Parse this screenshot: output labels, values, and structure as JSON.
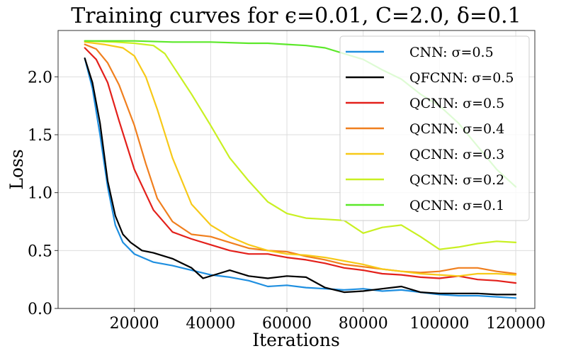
{
  "chart_data": {
    "type": "line",
    "title": "Training curves for ϵ=0.01, C=2.0, δ=0.1",
    "xlabel": "Iterations",
    "ylabel": "Loss",
    "xlim": [
      0,
      125000
    ],
    "ylim": [
      0,
      2.4
    ],
    "xticks": [
      20000,
      40000,
      60000,
      80000,
      100000,
      120000
    ],
    "yticks": [
      0.0,
      0.5,
      1.0,
      1.5,
      2.0
    ],
    "ytick_labels": [
      "0.0",
      "0.5",
      "1.0",
      "1.5",
      "2.0"
    ],
    "grid": true,
    "legend_position": "top-right",
    "series": [
      {
        "name": "CNN: σ=0.5",
        "color": "#1f8fe0",
        "x": [
          7000,
          9000,
          11000,
          13000,
          15000,
          17000,
          20000,
          25000,
          30000,
          35000,
          40000,
          45000,
          50000,
          55000,
          60000,
          65000,
          70000,
          75000,
          80000,
          85000,
          90000,
          95000,
          100000,
          105000,
          110000,
          115000,
          120000
        ],
        "y": [
          2.16,
          1.9,
          1.5,
          1.05,
          0.72,
          0.57,
          0.47,
          0.4,
          0.37,
          0.33,
          0.29,
          0.27,
          0.24,
          0.19,
          0.2,
          0.18,
          0.17,
          0.16,
          0.17,
          0.15,
          0.16,
          0.14,
          0.12,
          0.11,
          0.11,
          0.1,
          0.09
        ]
      },
      {
        "name": "QFCNN: σ=0.5",
        "color": "#000000",
        "x": [
          7000,
          9000,
          11000,
          13000,
          15000,
          17000,
          19000,
          22000,
          25000,
          30000,
          35000,
          38000,
          42000,
          45000,
          50000,
          55000,
          60000,
          65000,
          70000,
          75000,
          80000,
          85000,
          90000,
          95000,
          100000,
          105000,
          110000,
          115000,
          120000
        ],
        "y": [
          2.16,
          1.95,
          1.6,
          1.1,
          0.8,
          0.64,
          0.57,
          0.5,
          0.48,
          0.43,
          0.35,
          0.26,
          0.3,
          0.33,
          0.28,
          0.26,
          0.28,
          0.27,
          0.18,
          0.14,
          0.15,
          0.17,
          0.19,
          0.14,
          0.13,
          0.13,
          0.13,
          0.12,
          0.12
        ]
      },
      {
        "name": "QCNN: σ=0.5",
        "color": "#e3201b",
        "x": [
          7000,
          10000,
          13000,
          16000,
          20000,
          25000,
          30000,
          35000,
          40000,
          45000,
          50000,
          55000,
          60000,
          65000,
          70000,
          75000,
          80000,
          85000,
          90000,
          95000,
          100000,
          105000,
          110000,
          115000,
          120000
        ],
        "y": [
          2.25,
          2.15,
          1.95,
          1.62,
          1.2,
          0.85,
          0.66,
          0.6,
          0.55,
          0.5,
          0.47,
          0.47,
          0.44,
          0.42,
          0.39,
          0.35,
          0.33,
          0.3,
          0.29,
          0.27,
          0.26,
          0.28,
          0.25,
          0.24,
          0.22
        ]
      },
      {
        "name": "QCNN: σ=0.4",
        "color": "#f07f1e",
        "x": [
          7000,
          10000,
          13000,
          16000,
          20000,
          23000,
          26000,
          30000,
          35000,
          40000,
          45000,
          50000,
          55000,
          60000,
          65000,
          70000,
          75000,
          80000,
          85000,
          90000,
          95000,
          100000,
          105000,
          110000,
          115000,
          120000
        ],
        "y": [
          2.28,
          2.24,
          2.12,
          1.93,
          1.58,
          1.25,
          0.95,
          0.75,
          0.64,
          0.62,
          0.57,
          0.52,
          0.5,
          0.49,
          0.45,
          0.42,
          0.38,
          0.36,
          0.34,
          0.32,
          0.31,
          0.32,
          0.35,
          0.35,
          0.32,
          0.3
        ]
      },
      {
        "name": "QCNN: σ=0.3",
        "color": "#f7c918",
        "x": [
          7000,
          12000,
          17000,
          20000,
          23000,
          26000,
          30000,
          35000,
          40000,
          45000,
          50000,
          55000,
          60000,
          65000,
          70000,
          75000,
          80000,
          85000,
          90000,
          95000,
          100000,
          105000,
          110000,
          115000,
          120000
        ],
        "y": [
          2.3,
          2.28,
          2.25,
          2.18,
          2.0,
          1.72,
          1.3,
          0.9,
          0.72,
          0.62,
          0.55,
          0.5,
          0.47,
          0.46,
          0.44,
          0.41,
          0.38,
          0.34,
          0.32,
          0.3,
          0.29,
          0.28,
          0.3,
          0.3,
          0.29
        ]
      },
      {
        "name": "QCNN: σ=0.2",
        "color": "#c9f022",
        "x": [
          7000,
          15000,
          20000,
          25000,
          28000,
          31000,
          35000,
          40000,
          45000,
          50000,
          55000,
          60000,
          65000,
          70000,
          75000,
          80000,
          85000,
          90000,
          95000,
          100000,
          105000,
          110000,
          115000,
          120000
        ],
        "y": [
          2.31,
          2.3,
          2.29,
          2.27,
          2.2,
          2.05,
          1.85,
          1.58,
          1.3,
          1.1,
          0.92,
          0.82,
          0.78,
          0.77,
          0.76,
          0.65,
          0.7,
          0.72,
          0.62,
          0.51,
          0.53,
          0.56,
          0.58,
          0.57
        ]
      },
      {
        "name": "QCNN: σ=0.1",
        "color": "#5ce82a",
        "x": [
          7000,
          20000,
          30000,
          40000,
          50000,
          55000,
          60000,
          65000,
          70000,
          75000,
          80000,
          85000,
          90000,
          95000,
          100000,
          105000,
          110000,
          115000,
          120000
        ],
        "y": [
          2.31,
          2.31,
          2.3,
          2.3,
          2.29,
          2.29,
          2.28,
          2.27,
          2.25,
          2.2,
          2.15,
          2.06,
          1.98,
          1.85,
          1.75,
          1.6,
          1.4,
          1.2,
          1.05
        ]
      }
    ]
  }
}
